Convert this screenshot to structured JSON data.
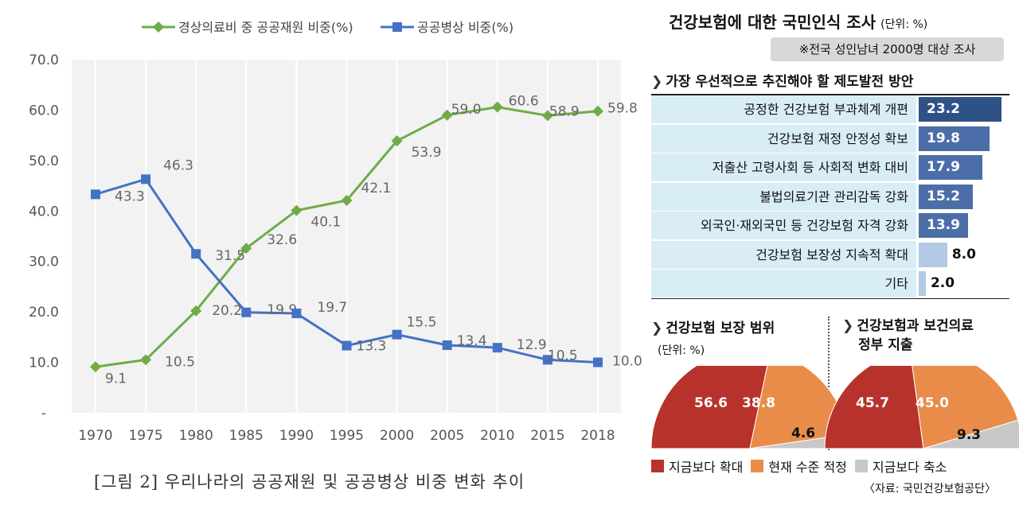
{
  "chart_data": [
    {
      "type": "line",
      "title": "",
      "x": [
        1970,
        1975,
        1980,
        1985,
        1990,
        1995,
        2000,
        2005,
        2010,
        2015,
        2018
      ],
      "series": [
        {
          "name": "경상의료비 중 공공재원 비중(%)",
          "color": "#6fac46",
          "values": [
            9.1,
            10.5,
            20.2,
            32.6,
            40.1,
            42.1,
            53.9,
            59.0,
            60.6,
            58.9,
            59.8
          ],
          "labels": [
            "9.1",
            "10.5",
            "20.2",
            "32.6",
            "40.1",
            "42.1",
            "53.9",
            "59.0",
            "60.6",
            "58.9",
            "59.8"
          ]
        },
        {
          "name": "공공병상 비중(%)",
          "color": "#4472c4",
          "values": [
            43.3,
            46.3,
            31.5,
            19.9,
            19.7,
            13.3,
            15.5,
            13.4,
            12.9,
            10.5,
            10.0
          ],
          "labels": [
            "43.3",
            "46.3",
            "31.5",
            "19.9",
            "19.7",
            "13.3",
            "15.5",
            "13.4",
            "12.9",
            "10.5",
            "10.0"
          ]
        }
      ],
      "ylim": [
        0,
        70
      ],
      "yticks": [
        "-",
        "10.0",
        "20.0",
        "30.0",
        "40.0",
        "50.0",
        "60.0",
        "70.0"
      ],
      "xticks": [
        "1970",
        "1975",
        "1980",
        "1985",
        "1990",
        "1995",
        "2000",
        "2005",
        "2010",
        "2015",
        "2018"
      ],
      "grid": true,
      "legend": "top"
    },
    {
      "type": "bar",
      "title": "가장 우선적으로 추진해야 할 제도발전 방안",
      "categories": [
        "공정한 건강보험 부과체계 개편",
        "건강보험 재정 안정성 확보",
        "저출산 고령사회 등 사회적 변화 대비",
        "불법의료기관 관리감독 강화",
        "외국인·재외국민 등 건강보험 자격 강화",
        "건강보험 보장성 지속적 확대",
        "기타"
      ],
      "values": [
        23.2,
        19.8,
        17.9,
        15.2,
        13.9,
        8.0,
        2.0
      ],
      "labels": [
        "23.2",
        "19.8",
        "17.9",
        "15.2",
        "13.9",
        "8.0",
        "2.0"
      ],
      "colors": [
        "#2f5286",
        "#4b6ea8",
        "#4b6ea8",
        "#4b6ea8",
        "#4b6ea8",
        "#b4c9e6",
        "#b4c9e6"
      ],
      "value_text_colors": [
        "#ffffff",
        "#ffffff",
        "#ffffff",
        "#ffffff",
        "#ffffff",
        "#111111",
        "#111111"
      ],
      "xlim": [
        0,
        25
      ]
    },
    {
      "type": "pie",
      "title": "건강보험 보장 범위",
      "unit": "(단위: %)",
      "categories": [
        "지금보다 확대",
        "현재 수준 적정",
        "지금보다 축소"
      ],
      "values": [
        56.6,
        38.8,
        4.6
      ],
      "labels": [
        "56.6",
        "38.8",
        "4.6"
      ],
      "colors": [
        "#b7322b",
        "#e98c4a",
        "#c8c8c8"
      ]
    },
    {
      "type": "pie",
      "title": "건강보험과 보건의료 정부 지출",
      "categories": [
        "지금보다 확대",
        "현재 수준 적정",
        "지금보다 축소"
      ],
      "values": [
        45.7,
        45.0,
        9.3
      ],
      "labels": [
        "45.7",
        "45.0",
        "9.3"
      ],
      "colors": [
        "#b7322b",
        "#e98c4a",
        "#c8c8c8"
      ]
    }
  ],
  "left": {
    "caption": "[그림 2] 우리나라의 공공재원 및 공공병상 비중 변화 추이"
  },
  "survey": {
    "title": "건강보험에 대한 국민인식 조사",
    "unit": "(단위: %)",
    "note": "※전국 성인남녀 2000명 대상 조사",
    "sec1_title": "가장 우선적으로 추진해야 할 제도발전 방안",
    "sec2_title": "건강보험 보장 범위",
    "sec2_unit": "(단위: %)",
    "sec3_title_line1": "건강보험과 보건의료",
    "sec3_title_line2": "정부 지출",
    "legend": [
      "지금보다 확대",
      "현재 수준 적정",
      "지금보다 축소"
    ],
    "source": "〈자료: 국민건강보험공단〉",
    "arrow_glyph": "❯"
  }
}
